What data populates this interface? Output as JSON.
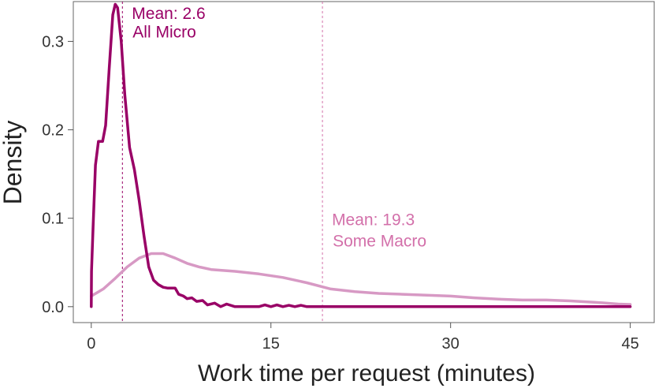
{
  "chart_data": {
    "type": "line",
    "title": "",
    "xlabel": "Work time per request (minutes)",
    "ylabel": "Density",
    "xlim": [
      -1.5,
      47
    ],
    "ylim": [
      -0.018,
      0.345
    ],
    "x_ticks": [
      0,
      15,
      30,
      45
    ],
    "x_tick_labels": [
      "0",
      "15",
      "30",
      "45"
    ],
    "y_ticks": [
      0.0,
      0.1,
      0.2,
      0.3
    ],
    "y_tick_labels": [
      "0.0",
      "0.1",
      "0.2",
      "0.3"
    ],
    "grid": false,
    "series": [
      {
        "name": "All Micro",
        "color": "#990066",
        "points": [
          [
            0,
            0.0
          ],
          [
            0.02,
            0.04
          ],
          [
            0.15,
            0.09
          ],
          [
            0.35,
            0.16
          ],
          [
            0.6,
            0.187
          ],
          [
            0.95,
            0.187
          ],
          [
            1.2,
            0.205
          ],
          [
            1.5,
            0.27
          ],
          [
            1.8,
            0.33
          ],
          [
            2.0,
            0.342
          ],
          [
            2.2,
            0.338
          ],
          [
            2.5,
            0.3
          ],
          [
            2.8,
            0.24
          ],
          [
            3.2,
            0.18
          ],
          [
            3.6,
            0.155
          ],
          [
            4.0,
            0.12
          ],
          [
            4.4,
            0.08
          ],
          [
            4.8,
            0.045
          ],
          [
            5.2,
            0.03
          ],
          [
            5.6,
            0.025
          ],
          [
            6.0,
            0.022
          ],
          [
            6.4,
            0.021
          ],
          [
            7.0,
            0.021
          ],
          [
            7.3,
            0.014
          ],
          [
            7.7,
            0.012
          ],
          [
            8.0,
            0.009
          ],
          [
            8.4,
            0.01
          ],
          [
            8.8,
            0.006
          ],
          [
            9.3,
            0.007
          ],
          [
            9.7,
            0.002
          ],
          [
            10.3,
            0.004
          ],
          [
            10.8,
            0.0
          ],
          [
            11.3,
            0.003
          ],
          [
            12.0,
            0.0
          ],
          [
            14.0,
            0.0
          ],
          [
            14.5,
            0.002
          ],
          [
            15.0,
            0.0
          ],
          [
            15.5,
            0.002
          ],
          [
            16.0,
            0.0
          ],
          [
            16.5,
            0.0015
          ],
          [
            17.0,
            0.0
          ],
          [
            17.5,
            0.0015
          ],
          [
            18.0,
            0.0
          ],
          [
            45.0,
            0.0
          ]
        ]
      },
      {
        "name": "Some Macro",
        "color": "#d799c4",
        "points": [
          [
            0,
            0.012
          ],
          [
            1,
            0.02
          ],
          [
            2,
            0.032
          ],
          [
            3,
            0.045
          ],
          [
            4,
            0.055
          ],
          [
            5,
            0.06
          ],
          [
            6,
            0.06
          ],
          [
            7,
            0.055
          ],
          [
            8,
            0.049
          ],
          [
            9,
            0.045
          ],
          [
            10,
            0.042
          ],
          [
            12,
            0.04
          ],
          [
            14,
            0.037
          ],
          [
            16,
            0.033
          ],
          [
            18,
            0.027
          ],
          [
            20,
            0.02
          ],
          [
            22,
            0.017
          ],
          [
            24,
            0.015
          ],
          [
            26,
            0.014
          ],
          [
            28,
            0.013
          ],
          [
            30,
            0.012
          ],
          [
            32,
            0.01
          ],
          [
            34,
            0.0085
          ],
          [
            36,
            0.0075
          ],
          [
            38,
            0.0075
          ],
          [
            40,
            0.0065
          ],
          [
            42,
            0.005
          ],
          [
            44,
            0.003
          ],
          [
            45,
            0.0025
          ]
        ]
      }
    ],
    "mean_lines": [
      {
        "x": 2.6,
        "color": "#990066",
        "label": "Mean: 2.6",
        "sublabel": "All Micro",
        "label_y": 0.3315,
        "sublabel_y": 0.3105
      },
      {
        "x": 19.3,
        "color": "#d370aa",
        "label": "Mean: 19.3",
        "sublabel": "Some Macro",
        "label_y": 0.0985,
        "sublabel_y": 0.0745
      }
    ]
  }
}
